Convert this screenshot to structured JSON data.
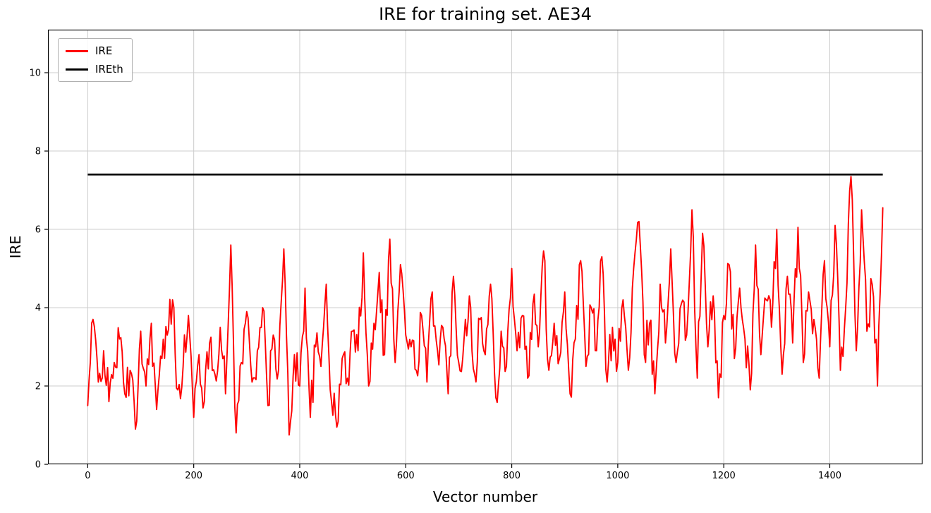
{
  "title": "IRE for training set. AE34",
  "chart_data": {
    "type": "line",
    "title": "IRE for training set. AE34",
    "xlabel": "Vector number",
    "ylabel": "IRE",
    "xlim": [
      -75,
      1575
    ],
    "ylim": [
      0,
      11.1
    ],
    "x_ticks": [
      0,
      200,
      400,
      600,
      800,
      1000,
      1200,
      1400
    ],
    "y_ticks": [
      0,
      2,
      4,
      6,
      8,
      10
    ],
    "grid": true,
    "grid_color": "#cccccc",
    "legend": {
      "position": "upper-left",
      "entries": [
        {
          "label": "IRE",
          "color": "#ff0000"
        },
        {
          "label": "IREth",
          "color": "#000000"
        }
      ]
    },
    "series": [
      {
        "name": "IRE",
        "color": "#ff0000",
        "x_start": 0,
        "x_step": 10,
        "values": [
          1.5,
          3.7,
          2.1,
          2.9,
          1.6,
          2.6,
          3.2,
          1.8,
          2.4,
          0.9,
          3.4,
          2.0,
          3.6,
          1.4,
          2.7,
          3.3,
          4.2,
          1.9,
          2.5,
          3.8,
          1.2,
          2.8,
          1.6,
          3.1,
          2.3,
          3.5,
          1.8,
          5.6,
          0.8,
          2.6,
          3.9,
          2.1,
          2.9,
          4.0,
          1.5,
          3.3,
          2.4,
          5.5,
          0.75,
          2.8,
          2.0,
          4.5,
          1.2,
          3.0,
          2.5,
          4.6,
          1.6,
          0.95,
          2.7,
          2.2,
          3.4,
          2.9,
          5.4,
          2.0,
          3.6,
          4.9,
          2.8,
          5.75,
          2.6,
          5.1,
          3.3,
          3.0,
          2.4,
          3.8,
          2.1,
          4.4,
          2.9,
          3.5,
          1.8,
          4.8,
          2.6,
          3.2,
          4.3,
          2.3,
          3.7,
          2.8,
          4.6,
          1.7,
          3.4,
          2.5,
          5.0,
          2.9,
          3.8,
          2.2,
          4.1,
          3.0,
          5.45,
          2.4,
          3.6,
          2.7,
          4.4,
          1.8,
          3.2,
          5.2,
          2.5,
          4.0,
          2.9,
          5.3,
          2.1,
          3.5,
          2.6,
          4.2,
          2.4,
          5.0,
          6.2,
          2.8,
          3.6,
          1.8,
          4.6,
          3.1,
          5.5,
          2.6,
          4.1,
          3.3,
          6.5,
          2.2,
          5.9,
          3.0,
          4.3,
          1.7,
          3.8,
          5.1,
          2.7,
          4.5,
          3.2,
          1.9,
          5.6,
          2.8,
          4.2,
          3.5,
          6.0,
          2.3,
          4.8,
          3.1,
          6.05,
          2.6,
          4.4,
          3.7,
          2.2,
          5.2,
          3.0,
          6.1,
          2.4,
          4.0,
          7.35,
          2.9,
          6.5,
          3.4,
          4.6,
          2.0,
          6.55
        ]
      },
      {
        "name": "IREth",
        "color": "#000000",
        "x_range": [
          0,
          1500
        ],
        "value": 7.4
      }
    ]
  }
}
